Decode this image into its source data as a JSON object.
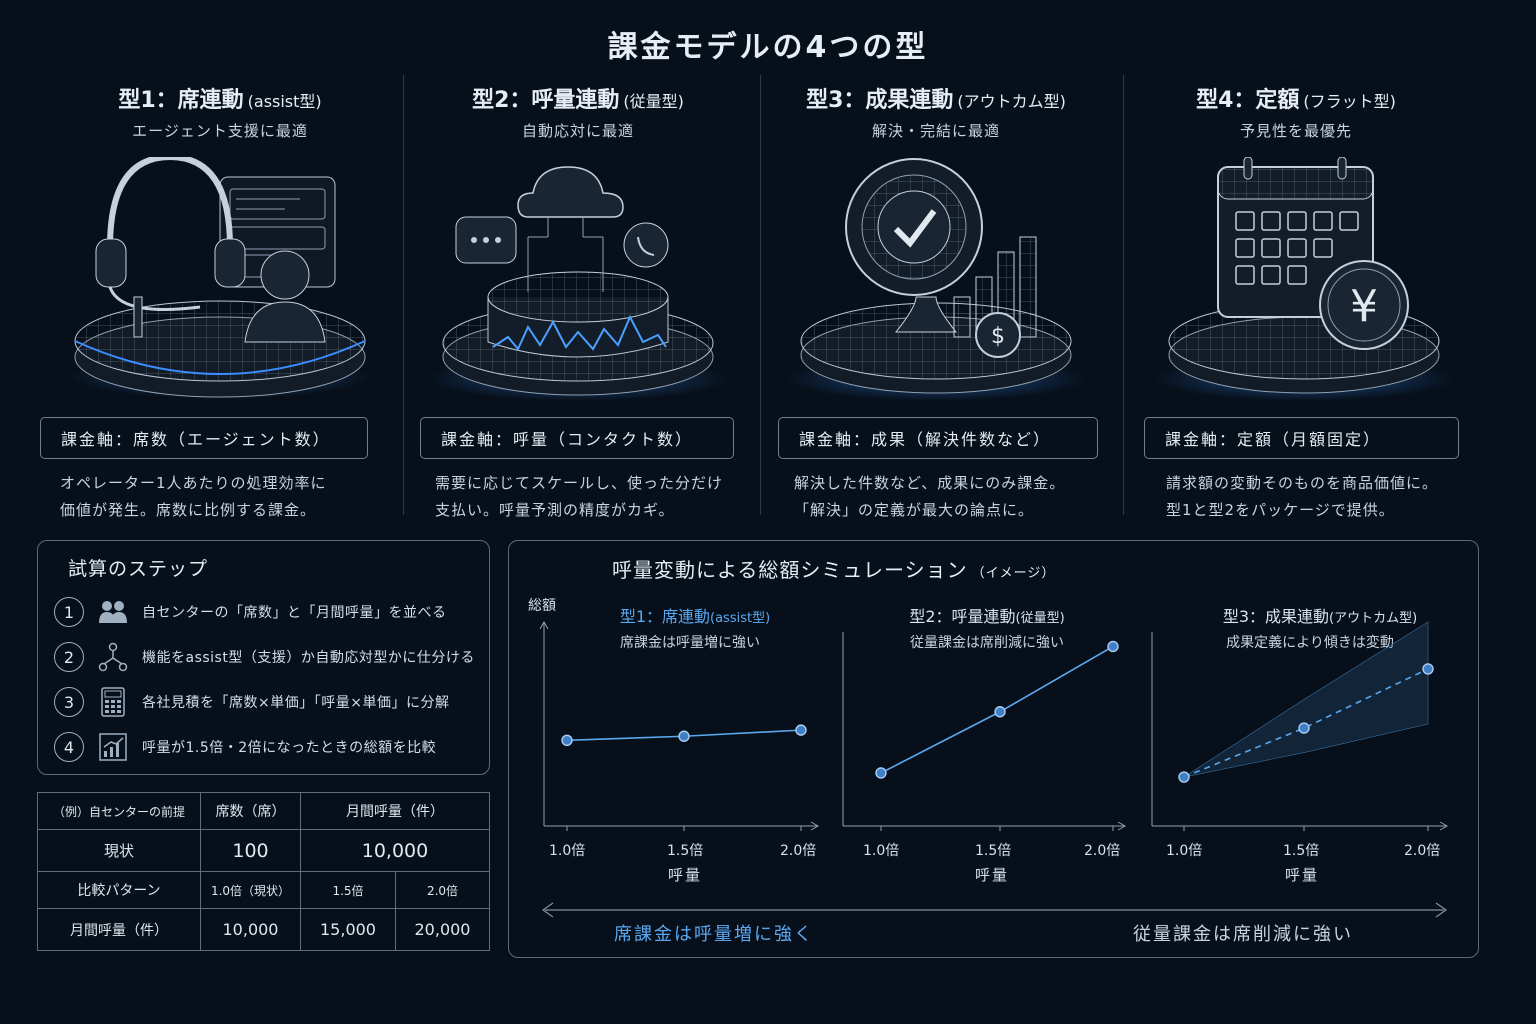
{
  "page_title": "課金モデルの4つの型",
  "models": [
    {
      "heading": "型1：席連動",
      "sub": "(assist型)",
      "tagline": "エージェント支援に最適",
      "axis": "課金軸：席数（エージェント数）",
      "desc": [
        "オペレーター1人あたりの処理効率に",
        "価値が発生。席数に比例する課金。"
      ],
      "icon": "headset-agent-icon"
    },
    {
      "heading": "型2：呼量連動",
      "sub": "(従量型)",
      "tagline": "自動応対に最適",
      "axis": "課金軸：呼量（コンタクト数）",
      "desc": [
        "需要に応じてスケールし、使った分だけ",
        "支払い。呼量予測の精度がカギ。"
      ],
      "icon": "cloud-waveform-icon"
    },
    {
      "heading": "型3：成果連動",
      "sub": "(アウトカム型)",
      "tagline": "解決・完結に最適",
      "axis": "課金軸：成果（解決件数など）",
      "desc": [
        "解決した件数など、成果にのみ課金。",
        "「解決」の定義が最大の論点に。"
      ],
      "icon": "checkmark-target-icon"
    },
    {
      "heading": "型4：定額",
      "sub": "(フラット型)",
      "tagline": "予見性を最優先",
      "axis": "課金軸：定額（月額固定）",
      "desc": [
        "請求額の変動そのものを商品価値に。",
        "型1と型2をパッケージで提供。"
      ],
      "icon": "calendar-yen-icon"
    }
  ],
  "steps": {
    "title": "試算のステップ",
    "items": [
      {
        "num": "1",
        "text": "自センターの「席数」と「月間呼量」を並べる",
        "icon": "people-icon"
      },
      {
        "num": "2",
        "text": "機能をassist型（支援）か自動応対型かに仕分ける",
        "icon": "branch-icon"
      },
      {
        "num": "3",
        "text": "各社見積を「席数×単価」「呼量×単価」に分解",
        "icon": "calculator-icon"
      },
      {
        "num": "4",
        "text": "呼量が1.5倍・2倍になったときの総額を比較",
        "icon": "chart-growth-icon"
      }
    ]
  },
  "premise_table": {
    "header": [
      "（例）自センターの前提",
      "席数（席）",
      "月間呼量（件）"
    ],
    "current": {
      "label": "現状",
      "seats": "100",
      "calls": "10,000"
    },
    "pattern": {
      "label": "比較パターン",
      "cols": [
        "1.0倍（現状）",
        "1.5倍",
        "2.0倍"
      ]
    },
    "monthly": {
      "label": "月間呼量（件）",
      "values": [
        "10,000",
        "15,000",
        "20,000"
      ]
    }
  },
  "simulation": {
    "title": "呼量変動による総額シミュレーション",
    "title_sub": "（イメージ）",
    "ylabel": "総額",
    "xlabel": "呼量",
    "bottom_left": "席課金は呼量増に強く",
    "bottom_right": "従量課金は席削減に強い"
  },
  "chart_data": [
    {
      "type": "line",
      "title": "型1：席連動",
      "title_sub": "(assist型)",
      "subtitle": "席課金は呼量増に強い",
      "categories": [
        "1.0倍",
        "1.5倍",
        "2.0倍"
      ],
      "values": [
        0.42,
        0.44,
        0.47
      ],
      "xlabel": "呼量",
      "ylabel": "総額",
      "ylim": [
        0,
        1
      ],
      "color": "#5aa8f0",
      "title_color": "#5aa8f0"
    },
    {
      "type": "line",
      "title": "型2：呼量連動",
      "title_sub": "(従量型)",
      "subtitle": "従量課金は席削減に強い",
      "categories": [
        "1.0倍",
        "1.5倍",
        "2.0倍"
      ],
      "values": [
        0.26,
        0.56,
        0.88
      ],
      "xlabel": "呼量",
      "ylim": [
        0,
        1
      ],
      "color": "#5aa8f0",
      "title_color": "#d8e2ec"
    },
    {
      "type": "line",
      "title": "型3：成果連動",
      "title_sub": "(アウトカム型)",
      "subtitle": "成果定義により傾きは変動",
      "categories": [
        "1.0倍",
        "1.5倍",
        "2.0倍"
      ],
      "values": [
        0.24,
        0.48,
        0.77
      ],
      "xlabel": "呼量",
      "ylim": [
        0,
        1
      ],
      "color": "#5aa8f0",
      "dashed": true,
      "band": [
        [
          0.24,
          0.24
        ],
        [
          0.36,
          0.62
        ],
        [
          0.5,
          1.0
        ]
      ],
      "title_color": "#d8e2ec"
    }
  ]
}
